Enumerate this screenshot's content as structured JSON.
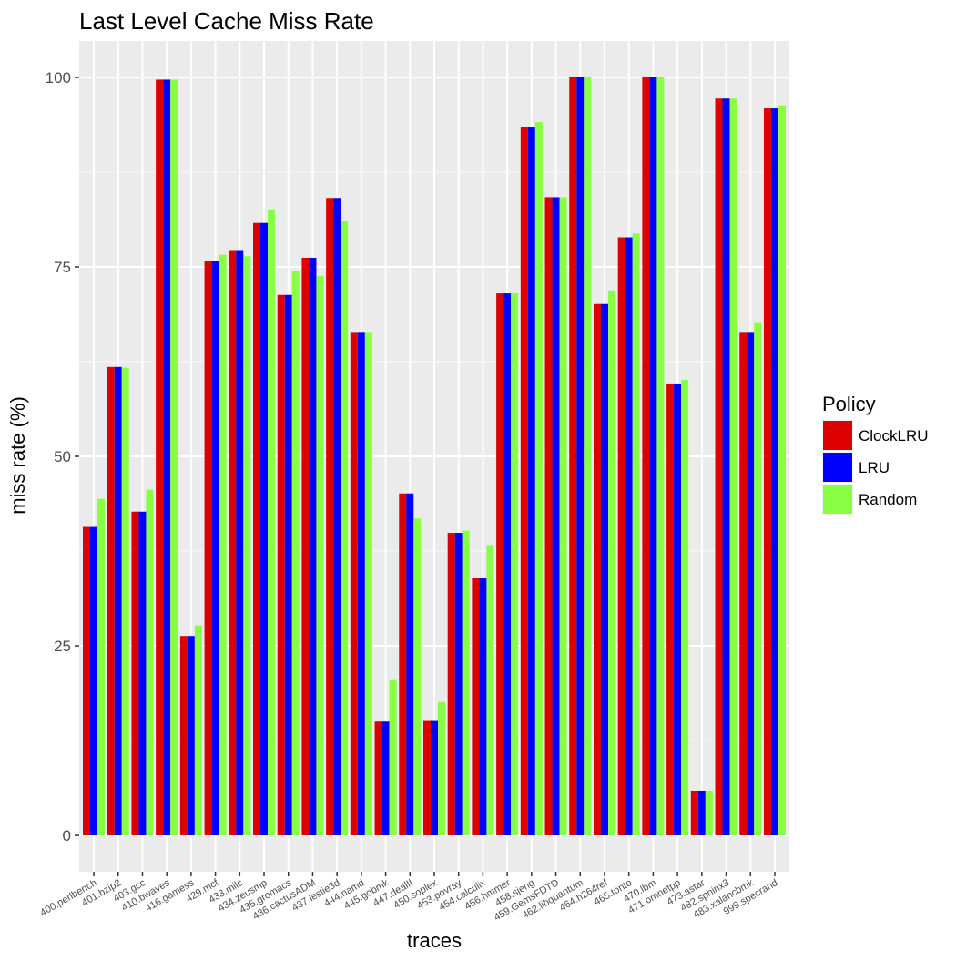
{
  "chart_data": {
    "type": "bar",
    "title": "Last Level Cache Miss Rate",
    "xlabel": "traces",
    "ylabel": "miss rate (%)",
    "ylim": [
      -4.8,
      104.8
    ],
    "yticks": [
      0,
      25,
      50,
      75,
      100
    ],
    "grid": true,
    "legend": {
      "title": "Policy",
      "position": "right"
    },
    "categories": [
      "400.perlbench",
      "401.bzip2",
      "403.gcc",
      "410.bwaves",
      "416.gamess",
      "429.mcf",
      "433.milc",
      "434.zeusmp",
      "435.gromacs",
      "436.cactusADM",
      "437.leslie3d",
      "444.namd",
      "445.gobmk",
      "447.dealII",
      "450.soplex",
      "453.povray",
      "454.calculix",
      "456.hmmer",
      "458.sjeng",
      "459.GemsFDTD",
      "462.libquantum",
      "464.h264ref",
      "465.tonto",
      "470.lbm",
      "471.omnetpp",
      "473.astar",
      "482.sphinx3",
      "483.xalancbmk",
      "999.specrand"
    ],
    "series": [
      {
        "name": "ClockLRU",
        "color": "#dd0000",
        "values": [
          40.8,
          61.8,
          42.7,
          99.7,
          26.3,
          75.8,
          77.1,
          80.8,
          71.3,
          76.2,
          84.1,
          66.3,
          15.0,
          45.1,
          15.2,
          39.9,
          34.0,
          71.5,
          93.5,
          84.2,
          100.0,
          70.1,
          78.9,
          100.0,
          59.5,
          5.9,
          97.2,
          66.3,
          95.9
        ]
      },
      {
        "name": "LRU",
        "color": "#0000ff",
        "values": [
          40.8,
          61.8,
          42.7,
          99.7,
          26.3,
          75.8,
          77.1,
          80.8,
          71.3,
          76.2,
          84.1,
          66.3,
          15.0,
          45.1,
          15.2,
          39.9,
          34.0,
          71.5,
          93.5,
          84.2,
          100.0,
          70.1,
          78.9,
          100.0,
          59.5,
          5.9,
          97.2,
          66.3,
          95.9
        ]
      },
      {
        "name": "Random",
        "color": "#88ff44",
        "values": [
          44.4,
          61.7,
          45.6,
          99.7,
          27.7,
          76.6,
          76.4,
          82.6,
          74.4,
          73.8,
          81.0,
          66.3,
          20.6,
          41.8,
          17.6,
          40.2,
          38.3,
          71.5,
          94.1,
          84.2,
          100.0,
          71.9,
          79.4,
          100.0,
          60.1,
          5.9,
          97.2,
          67.6,
          96.3
        ]
      }
    ]
  }
}
